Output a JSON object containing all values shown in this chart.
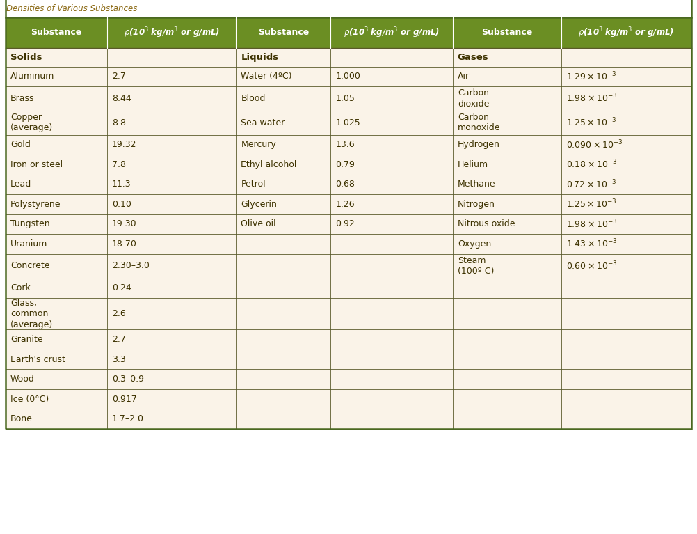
{
  "title": "Densities of Various Substances",
  "title_color": "#8B6914",
  "header_bg": "#6B8E23",
  "header_text_color": "#FFFFFF",
  "row_bg": "#FAF3E8",
  "cell_text_color": "#3D3200",
  "border_color": "#5a5a2a",
  "outer_border_color": "#4a6820",
  "sections": [
    {
      "header": "Solids",
      "rows": [
        [
          "Aluminum",
          "2.7",
          false
        ],
        [
          "Brass",
          "8.44",
          false
        ],
        [
          "Copper\n(average)",
          "8.8",
          false
        ],
        [
          "Gold",
          "19.32",
          false
        ],
        [
          "Iron or steel",
          "7.8",
          false
        ],
        [
          "Lead",
          "11.3",
          false
        ],
        [
          "Polystyrene",
          "0.10",
          false
        ],
        [
          "Tungsten",
          "19.30",
          false
        ],
        [
          "Uranium",
          "18.70",
          false
        ],
        [
          "Concrete",
          "2.30–3.0",
          true
        ],
        [
          "Cork",
          "0.24",
          false
        ],
        [
          "Glass,\ncommon\n(average)",
          "2.6",
          false
        ],
        [
          "Granite",
          "2.7",
          false
        ],
        [
          "Earth's crust",
          "3.3",
          false
        ],
        [
          "Wood",
          "0.3–0.9",
          false
        ],
        [
          "Ice (0°C)",
          "0.917",
          false
        ],
        [
          "Bone",
          "1.7–2.0",
          false
        ]
      ]
    },
    {
      "header": "Liquids",
      "rows": [
        [
          "Water (4ºC)",
          "1.000"
        ],
        [
          "Blood",
          "1.05"
        ],
        [
          "Sea water",
          "1.025"
        ],
        [
          "Mercury",
          "13.6"
        ],
        [
          "Ethyl alcohol",
          "0.79"
        ],
        [
          "Petrol",
          "0.68"
        ],
        [
          "Glycerin",
          "1.26"
        ],
        [
          "Olive oil",
          "0.92"
        ],
        [
          "",
          ""
        ],
        [
          "",
          ""
        ],
        [
          "",
          ""
        ],
        [
          "",
          ""
        ],
        [
          "",
          ""
        ],
        [
          "",
          ""
        ],
        [
          "",
          ""
        ],
        [
          "",
          ""
        ],
        [
          "",
          ""
        ]
      ]
    },
    {
      "header": "Gases",
      "rows": [
        [
          "Air",
          "1.29"
        ],
        [
          "Carbon\ndioxide",
          "1.98"
        ],
        [
          "Carbon\nmonoxide",
          "1.25"
        ],
        [
          "Hydrogen",
          "0.090"
        ],
        [
          "Helium",
          "0.18"
        ],
        [
          "Methane",
          "0.72"
        ],
        [
          "Nitrogen",
          "1.25"
        ],
        [
          "Nitrous oxide",
          "1.98"
        ],
        [
          "Oxygen",
          "1.43"
        ],
        [
          "Steam\n(100º C)",
          "0.60"
        ],
        [
          "",
          ""
        ],
        [
          "",
          ""
        ],
        [
          "",
          ""
        ],
        [
          "",
          ""
        ],
        [
          "",
          ""
        ],
        [
          "",
          ""
        ],
        [
          "",
          ""
        ]
      ]
    }
  ]
}
